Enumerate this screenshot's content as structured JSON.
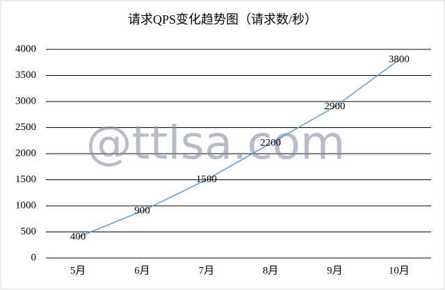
{
  "chart_data": {
    "type": "line",
    "title": "请求QPS变化趋势图（请求数/秒）",
    "categories": [
      "5月",
      "6月",
      "7月",
      "8月",
      "9月",
      "10月"
    ],
    "series": [
      {
        "name": "请求QPS",
        "color": "#5b9bd5",
        "values": [
          400,
          900,
          1500,
          2200,
          2900,
          3800
        ]
      }
    ],
    "ylim": [
      0,
      4000
    ],
    "yticks": [
      0,
      500,
      1000,
      1500,
      2000,
      2500,
      3000,
      3500,
      4000
    ],
    "grid": true,
    "data_labels": true,
    "watermark": "@ttlsa.com"
  }
}
